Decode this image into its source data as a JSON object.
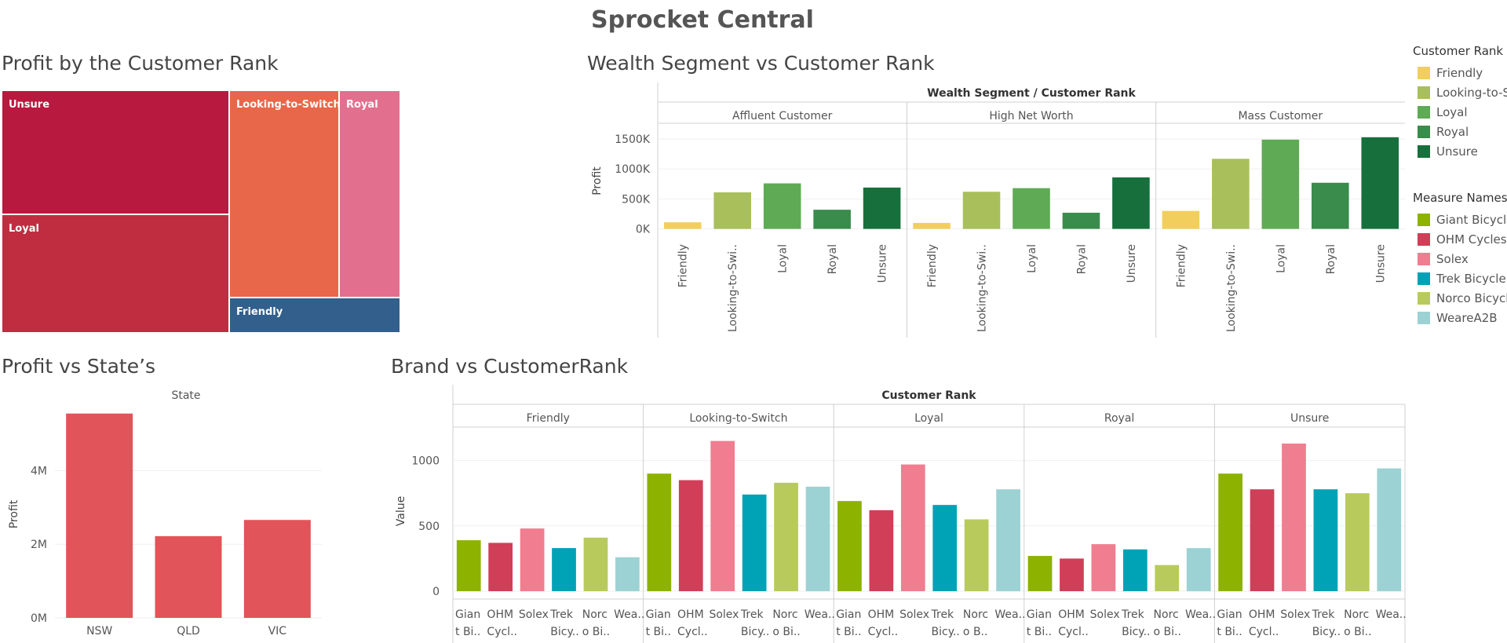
{
  "dashboard": {
    "title": "Sprocket Central"
  },
  "colors": {
    "Friendly": "#f2cf5c",
    "Looking-to-Switch": "#a8bf5c",
    "Loyal": "#5faa55",
    "Royal": "#3a8c4c",
    "Unsure": "#17703c",
    "Giant Bicycles": "#8db200",
    "OHM Cycles": "#d13e58",
    "Solex": "#f17d90",
    "Trek Bicycles": "#00a3b5",
    "Norco Bicycles": "#b9ca5d",
    "WeareA2B": "#9dd2d4",
    "state_bar": "#e15459"
  },
  "legends": {
    "rank": {
      "title": "Customer Rank",
      "items": [
        {
          "label": "Friendly",
          "color": "#f2cf5c"
        },
        {
          "label": "Looking-to-S",
          "color": "#a8bf5c"
        },
        {
          "label": "Loyal",
          "color": "#5faa55"
        },
        {
          "label": "Royal",
          "color": "#3a8c4c"
        },
        {
          "label": "Unsure",
          "color": "#17703c"
        }
      ]
    },
    "measure": {
      "title": "Measure Names",
      "items": [
        {
          "label": "Giant Bicycl",
          "color": "#8db200"
        },
        {
          "label": "OHM Cycles",
          "color": "#d13e58"
        },
        {
          "label": "Solex",
          "color": "#f17d90"
        },
        {
          "label": "Trek Bicycle",
          "color": "#00a3b5"
        },
        {
          "label": "Norco Bicycl",
          "color": "#b9ca5d"
        },
        {
          "label": "WeareA2B",
          "color": "#9dd2d4"
        }
      ]
    }
  },
  "chart_data": [
    {
      "id": "treemap",
      "type": "treemap",
      "title": "Profit by the Customer Rank",
      "items": [
        {
          "label": "Unsure",
          "share": 0.22,
          "color": "#b8193f"
        },
        {
          "label": "Loyal",
          "share": 0.2,
          "color": "#c02d41"
        },
        {
          "label": "Looking-to-Switch",
          "share": 0.2,
          "color": "#e8664a"
        },
        {
          "label": "Royal",
          "share": 0.09,
          "color": "#e26f8e"
        },
        {
          "label": "Friendly",
          "share": 0.05,
          "color": "#325f8c"
        }
      ]
    },
    {
      "id": "wealth",
      "type": "bar",
      "title": "Wealth Segment vs Customer Rank",
      "header": "Wealth Segment / Customer Rank",
      "ylabel": "Profit",
      "ylim": [
        -150000,
        1750000
      ],
      "yticks": [
        {
          "v": 0,
          "t": "0K"
        },
        {
          "v": 500000,
          "t": "500K"
        },
        {
          "v": 1000000,
          "t": "1000K"
        },
        {
          "v": 1500000,
          "t": "1500K"
        }
      ],
      "panes": [
        {
          "name": "Affluent Customer",
          "categories": [
            "Friendly",
            "Looking-to-Swi..",
            "Loyal",
            "Royal",
            "Unsure"
          ],
          "values": [
            110000,
            610000,
            760000,
            320000,
            690000
          ]
        },
        {
          "name": "High Net Worth",
          "categories": [
            "Friendly",
            "Looking-to-Swi..",
            "Loyal",
            "Royal",
            "Unsure"
          ],
          "values": [
            100000,
            620000,
            680000,
            270000,
            860000
          ]
        },
        {
          "name": "Mass Customer",
          "categories": [
            "Friendly",
            "Looking-to-Swi..",
            "Loyal",
            "Royal",
            "Unsure"
          ],
          "values": [
            300000,
            1170000,
            1490000,
            770000,
            1530000
          ]
        }
      ],
      "bar_colors": [
        "#f2cf5c",
        "#a8bf5c",
        "#5faa55",
        "#3a8c4c",
        "#17703c"
      ]
    },
    {
      "id": "state",
      "type": "bar",
      "title": "Profit vs State’s",
      "header": "State",
      "ylabel": "Profit",
      "ylim": [
        0,
        5800000
      ],
      "yticks": [
        {
          "v": 0,
          "t": "0M"
        },
        {
          "v": 2000000,
          "t": "2M"
        },
        {
          "v": 4000000,
          "t": "4M"
        }
      ],
      "categories": [
        "NSW",
        "QLD",
        "VIC"
      ],
      "values": [
        5550000,
        2220000,
        2660000
      ],
      "color": "#e15459"
    },
    {
      "id": "brand",
      "type": "bar",
      "title": "Brand vs CustomerRank",
      "header": "Customer Rank",
      "ylabel": "Value",
      "ylim": [
        -60,
        1250
      ],
      "yticks": [
        {
          "v": 0,
          "t": "0"
        },
        {
          "v": 500,
          "t": "500"
        },
        {
          "v": 1000,
          "t": "1000"
        }
      ],
      "categories": [
        "Gian t Bi..",
        "OHM Cycl..",
        "Solex",
        "Trek Bicy..",
        "Norc o Bi..",
        "Wea.."
      ],
      "bar_colors": [
        "#8db200",
        "#d13e58",
        "#f17d90",
        "#00a3b5",
        "#b9ca5d",
        "#9dd2d4"
      ],
      "panes": [
        {
          "name": "Friendly",
          "values": [
            390,
            370,
            480,
            330,
            410,
            260
          ],
          "tick_labels": [
            [
              "Gian",
              "t Bi.."
            ],
            [
              "OHM",
              "Cycl.."
            ],
            [
              "Solex",
              ""
            ],
            [
              "Trek",
              "Bicy.."
            ],
            [
              "Norc",
              "o Bi.."
            ],
            [
              "Wea..",
              ""
            ]
          ]
        },
        {
          "name": "Looking-to-Switch",
          "values": [
            900,
            850,
            1150,
            740,
            830,
            800
          ],
          "tick_labels": [
            [
              "Gian",
              "t Bi.."
            ],
            [
              "OHM",
              "Cycl.."
            ],
            [
              "Solex",
              ""
            ],
            [
              "Trek",
              "Bicy.."
            ],
            [
              "Norc",
              "o Bi.."
            ],
            [
              "Wea..",
              ""
            ]
          ]
        },
        {
          "name": "Loyal",
          "values": [
            690,
            620,
            970,
            660,
            550,
            780
          ],
          "tick_labels": [
            [
              "Gian",
              "t Bi.."
            ],
            [
              "OHM",
              "Cycl.."
            ],
            [
              "Solex",
              ""
            ],
            [
              "Trek",
              "Bicy.."
            ],
            [
              "Norc",
              "o B.."
            ],
            [
              "Wea..",
              ""
            ]
          ]
        },
        {
          "name": "Royal",
          "values": [
            270,
            250,
            360,
            320,
            200,
            330
          ],
          "tick_labels": [
            [
              "Gian",
              "t Bi.."
            ],
            [
              "OHM",
              "Cycl.."
            ],
            [
              "Solex",
              ""
            ],
            [
              "Trek",
              "Bicy.."
            ],
            [
              "Norc",
              "o Bi.."
            ],
            [
              "Wea..",
              ""
            ]
          ]
        },
        {
          "name": "Unsure",
          "values": [
            900,
            780,
            1130,
            780,
            750,
            940
          ],
          "tick_labels": [
            [
              "Gian",
              "t Bi.."
            ],
            [
              "OHM",
              "Cycl.."
            ],
            [
              "Solex",
              ""
            ],
            [
              "Trek",
              "Bicy.."
            ],
            [
              "Norc",
              "o Bi.."
            ],
            [
              "Wea..",
              ""
            ]
          ]
        }
      ]
    }
  ]
}
